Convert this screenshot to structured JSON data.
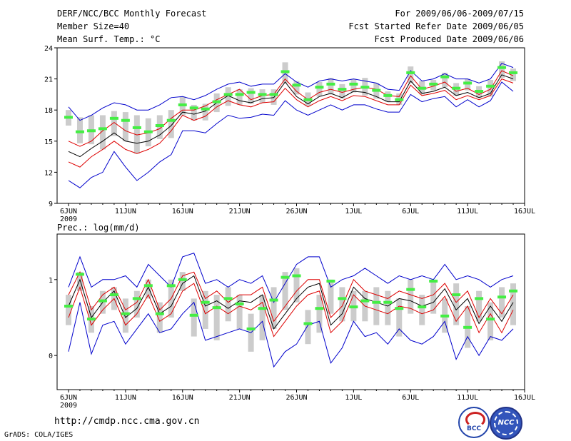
{
  "header": {
    "title": "DERF/NCC/BCC Monthly Forecast",
    "member_size": "Member Size=40",
    "variable": "Mean Surf. Temp.: °C",
    "forecast_period": "For 2009/06/06-2009/07/15",
    "start_date": "Fcst Started Refer Date 2009/06/05",
    "produced_date": "Fcst Produced Date 2009/06/06"
  },
  "footer": {
    "url": "http://cmdp.ncc.cma.gov.cn",
    "credit": "GrADS: COLA/IGES",
    "logo_bcc": "BCC",
    "logo_ncc": "NCC"
  },
  "colors": {
    "envelope": "#0000cc",
    "spread": "#dd0000",
    "mean": "#000000",
    "median": "#44ee44",
    "box": "#cccccc"
  },
  "chart_data": [
    {
      "type": "line",
      "title": "Mean Surf. Temp.: °C",
      "xlabel": "",
      "ylabel": "°C",
      "x_ticks": [
        "6JUN",
        "11JUN",
        "16JUN",
        "21JUN",
        "26JUN",
        "1JUL",
        "6JUL",
        "11JUL",
        "16JUL"
      ],
      "x_year_label": "2009",
      "y_ticks": [
        "9",
        "12",
        "15",
        "18",
        "21",
        "24"
      ],
      "ylim": [
        9,
        24
      ],
      "days": 40,
      "max": [
        18.3,
        17.0,
        17.5,
        18.2,
        18.7,
        18.5,
        18.0,
        18.0,
        18.5,
        19.2,
        19.3,
        19.0,
        19.4,
        20.0,
        20.5,
        20.7,
        20.3,
        20.5,
        20.5,
        21.5,
        20.7,
        20.2,
        20.8,
        21.0,
        20.8,
        21.0,
        20.8,
        20.6,
        20.0,
        19.9,
        21.8,
        20.8,
        21.0,
        21.5,
        21.0,
        21.0,
        20.6,
        21.0,
        22.5,
        22.1
      ],
      "q75": [
        15.0,
        14.5,
        15.0,
        16.0,
        16.8,
        16.0,
        15.6,
        15.8,
        16.2,
        17.2,
        18.0,
        18.0,
        18.4,
        19.0,
        19.5,
        20.0,
        19.0,
        19.4,
        19.5,
        21.0,
        19.8,
        19.0,
        19.7,
        20.0,
        19.7,
        20.0,
        20.2,
        20.0,
        19.4,
        19.3,
        21.3,
        20.0,
        20.3,
        20.7,
        19.8,
        20.1,
        19.5,
        20.0,
        21.8,
        21.3
      ],
      "mean": [
        14.0,
        13.5,
        14.3,
        15.0,
        15.8,
        15.0,
        14.8,
        15.0,
        15.6,
        16.5,
        17.8,
        17.6,
        17.9,
        18.7,
        19.4,
        18.9,
        18.7,
        19.1,
        19.2,
        20.7,
        19.3,
        18.6,
        19.3,
        19.6,
        19.2,
        19.8,
        19.7,
        19.3,
        18.8,
        18.8,
        20.8,
        19.6,
        19.8,
        20.2,
        19.4,
        19.7,
        19.2,
        19.6,
        21.4,
        21.0
      ],
      "q25": [
        13.0,
        12.5,
        13.5,
        14.2,
        15.0,
        14.2,
        13.8,
        14.2,
        14.8,
        16.0,
        17.5,
        17.0,
        17.4,
        18.3,
        18.9,
        18.5,
        18.3,
        18.7,
        18.8,
        20.1,
        19.0,
        18.3,
        18.9,
        19.3,
        18.9,
        19.4,
        19.3,
        18.9,
        18.5,
        18.5,
        20.4,
        19.4,
        19.6,
        19.9,
        19.0,
        19.4,
        19.0,
        19.4,
        21.0,
        20.6
      ],
      "min": [
        11.2,
        10.5,
        11.5,
        12.0,
        14.0,
        12.5,
        11.2,
        12.0,
        13.0,
        13.7,
        16.0,
        16.0,
        15.8,
        16.7,
        17.5,
        17.2,
        17.3,
        17.6,
        17.5,
        18.9,
        18.0,
        17.5,
        18.0,
        18.5,
        18.0,
        18.5,
        18.5,
        18.1,
        17.8,
        17.8,
        19.5,
        18.8,
        19.1,
        19.3,
        18.3,
        19.0,
        18.3,
        18.9,
        20.7,
        19.8
      ],
      "median": [
        17.3,
        15.9,
        16.0,
        16.2,
        17.2,
        17.0,
        16.3,
        15.9,
        16.5,
        17.0,
        18.5,
        18.2,
        18.1,
        18.8,
        19.5,
        19.5,
        19.7,
        19.5,
        19.5,
        21.7,
        20.4,
        19.0,
        20.2,
        20.5,
        20.0,
        20.5,
        20.2,
        19.9,
        19.4,
        19.0,
        21.6,
        20.1,
        20.5,
        21.2,
        20.1,
        20.6,
        19.8,
        20.3,
        22.1,
        21.6
      ],
      "box_hi": [
        18.0,
        17.3,
        17.5,
        17.5,
        17.9,
        17.8,
        17.5,
        17.2,
        17.5,
        18.0,
        19.3,
        18.5,
        18.6,
        19.6,
        20.2,
        20.0,
        20.1,
        20.0,
        20.0,
        22.6,
        20.8,
        19.7,
        20.7,
        21.1,
        20.5,
        21.0,
        21.1,
        20.6,
        19.8,
        19.6,
        22.2,
        20.8,
        20.9,
        21.6,
        20.6,
        21.0,
        20.3,
        20.9,
        22.7,
        22.0
      ],
      "box_lo": [
        16.5,
        14.8,
        14.7,
        14.2,
        15.5,
        15.0,
        13.8,
        14.5,
        15.2,
        15.3,
        17.5,
        17.0,
        17.0,
        17.8,
        18.4,
        18.5,
        18.6,
        18.7,
        18.5,
        20.6,
        19.5,
        18.4,
        19.3,
        19.5,
        19.1,
        19.7,
        19.4,
        19.1,
        18.8,
        18.5,
        20.6,
        19.5,
        19.9,
        20.2,
        19.4,
        19.9,
        19.2,
        19.3,
        21.1,
        20.8
      ]
    },
    {
      "type": "line",
      "title": "Prec.: log(mm/d)",
      "xlabel": "",
      "ylabel": "log(mm/d)",
      "x_ticks": [
        "6JUN",
        "11JUN",
        "16JUN",
        "21JUN",
        "26JUN",
        "1JUL",
        "6JUL",
        "11JUL",
        "16JUL"
      ],
      "x_year_label": "2009",
      "y_ticks": [
        "0",
        "1"
      ],
      "ylim": [
        -0.45,
        1.6
      ],
      "days": 40,
      "max": [
        0.9,
        1.3,
        0.9,
        1.0,
        1.0,
        1.05,
        0.9,
        1.2,
        1.05,
        0.9,
        1.3,
        1.35,
        0.95,
        1.0,
        0.9,
        1.0,
        0.95,
        1.05,
        0.7,
        0.95,
        1.2,
        1.3,
        1.3,
        0.9,
        1.0,
        1.05,
        1.15,
        1.05,
        0.95,
        1.05,
        1.0,
        1.05,
        1.0,
        1.2,
        1.0,
        1.05,
        1.0,
        0.9,
        1.0,
        1.05
      ],
      "q75": [
        0.8,
        1.1,
        0.6,
        0.8,
        0.9,
        0.6,
        0.7,
        1.0,
        0.6,
        0.75,
        1.05,
        1.1,
        0.75,
        0.85,
        0.7,
        0.8,
        0.8,
        0.9,
        0.45,
        0.65,
        0.85,
        1.0,
        1.0,
        0.5,
        0.65,
        1.0,
        0.85,
        0.8,
        0.75,
        0.85,
        0.8,
        0.75,
        0.8,
        0.95,
        0.7,
        0.85,
        0.5,
        0.75,
        0.55,
        0.8
      ],
      "mean": [
        0.65,
        1.0,
        0.5,
        0.7,
        0.85,
        0.5,
        0.62,
        0.9,
        0.55,
        0.65,
        0.95,
        1.05,
        0.65,
        0.72,
        0.62,
        0.72,
        0.7,
        0.8,
        0.35,
        0.55,
        0.75,
        0.9,
        0.95,
        0.4,
        0.55,
        0.9,
        0.75,
        0.7,
        0.65,
        0.75,
        0.72,
        0.65,
        0.7,
        0.88,
        0.6,
        0.75,
        0.42,
        0.65,
        0.45,
        0.7
      ],
      "q25": [
        0.5,
        0.9,
        0.4,
        0.6,
        0.75,
        0.4,
        0.55,
        0.8,
        0.45,
        0.55,
        0.85,
        0.95,
        0.55,
        0.65,
        0.55,
        0.65,
        0.6,
        0.7,
        0.25,
        0.45,
        0.65,
        0.8,
        0.85,
        0.3,
        0.45,
        0.8,
        0.65,
        0.6,
        0.55,
        0.65,
        0.62,
        0.55,
        0.6,
        0.78,
        0.45,
        0.65,
        0.3,
        0.55,
        0.3,
        0.6
      ],
      "min": [
        0.05,
        0.7,
        0.02,
        0.4,
        0.45,
        0.15,
        0.35,
        0.55,
        0.3,
        0.35,
        0.55,
        0.7,
        0.2,
        0.25,
        0.3,
        0.35,
        0.3,
        0.45,
        -0.15,
        0.05,
        0.15,
        0.4,
        0.45,
        -0.1,
        0.1,
        0.45,
        0.25,
        0.3,
        0.15,
        0.35,
        0.2,
        0.15,
        0.25,
        0.45,
        -0.05,
        0.25,
        0.0,
        0.25,
        0.2,
        0.35
      ],
      "median": [
        0.65,
        1.07,
        0.48,
        0.72,
        0.8,
        0.55,
        0.75,
        0.92,
        0.55,
        0.92,
        1.0,
        0.53,
        0.7,
        0.63,
        0.75,
        0.68,
        0.35,
        0.62,
        0.73,
        1.03,
        1.05,
        0.42,
        0.62,
        0.98,
        0.75,
        0.64,
        0.72,
        0.7,
        0.7,
        0.62,
        0.87,
        0.64,
        0.98,
        0.52,
        0.8,
        0.37,
        0.75,
        0.48,
        0.77,
        0.85
      ],
      "box_hi": [
        0.8,
        1.1,
        0.65,
        0.85,
        0.9,
        0.75,
        0.85,
        1.0,
        0.7,
        1.0,
        1.1,
        0.75,
        0.85,
        0.8,
        0.9,
        0.8,
        0.55,
        0.8,
        0.9,
        1.1,
        1.15,
        0.6,
        0.8,
        1.0,
        0.9,
        0.85,
        0.85,
        0.9,
        0.85,
        0.75,
        1.0,
        0.8,
        1.0,
        0.75,
        0.95,
        0.65,
        0.85,
        0.7,
        0.9,
        0.95
      ],
      "box_lo": [
        0.4,
        0.85,
        0.3,
        0.55,
        0.6,
        0.3,
        0.5,
        0.75,
        0.3,
        0.5,
        0.85,
        0.25,
        0.35,
        0.2,
        0.45,
        0.35,
        0.05,
        0.2,
        0.35,
        0.6,
        0.7,
        0.15,
        0.3,
        0.55,
        0.45,
        0.45,
        0.45,
        0.4,
        0.4,
        0.25,
        0.55,
        0.4,
        0.55,
        0.3,
        0.4,
        0.1,
        0.45,
        0.2,
        0.5,
        0.4
      ]
    }
  ]
}
